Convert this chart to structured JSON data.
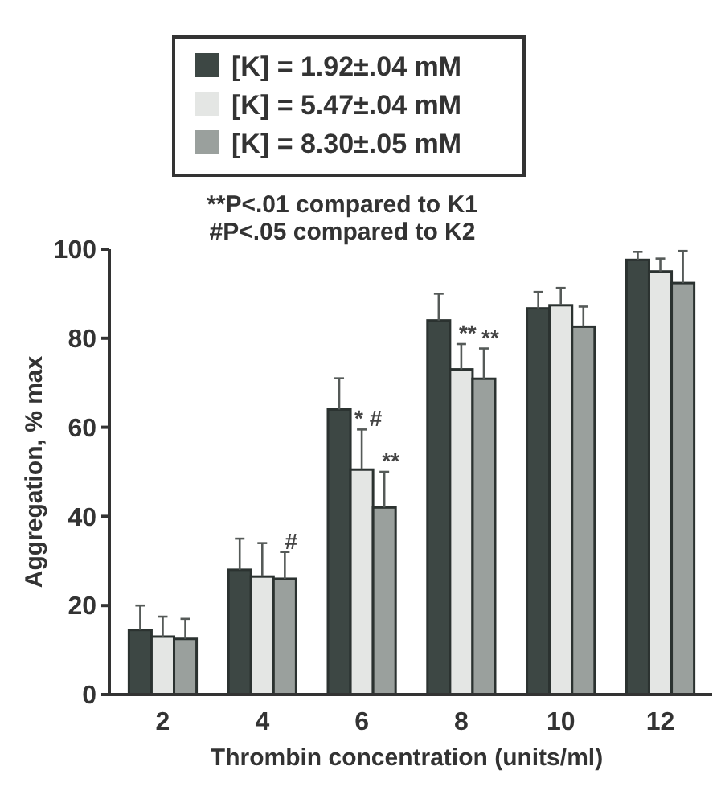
{
  "chart_data": {
    "type": "bar",
    "xlabel": "Thrombin concentration (units/ml)",
    "ylabel": "Aggregation, % max",
    "categories": [
      "2",
      "4",
      "6",
      "8",
      "10",
      "12"
    ],
    "series": [
      {
        "name": "[K] = 1.92±.04 mM",
        "color": "#3d4744",
        "values": [
          14.5,
          28,
          64,
          84,
          86.7,
          97.6
        ],
        "errors": [
          [
            14.5,
            20
          ],
          [
            28,
            35
          ],
          [
            64,
            71
          ],
          [
            84,
            90
          ],
          [
            86.7,
            90.4
          ],
          [
            97.6,
            99.4
          ]
        ]
      },
      {
        "name": "[K] = 5.47±.04 mM",
        "color": "#e4e6e4",
        "values": [
          13,
          26.5,
          50.5,
          73,
          87.4,
          95
        ],
        "errors": [
          [
            13,
            17.5
          ],
          [
            26.5,
            34
          ],
          [
            50.5,
            59.5
          ],
          [
            73,
            78.7
          ],
          [
            87.4,
            91.3
          ],
          [
            95,
            97.9
          ]
        ]
      },
      {
        "name": "[K] = 8.30±.05 mM",
        "color": "#9aa09d",
        "values": [
          12.5,
          26,
          42,
          70.9,
          82.6,
          92.4
        ],
        "errors": [
          [
            12.5,
            17
          ],
          [
            26,
            32
          ],
          [
            42,
            50
          ],
          [
            70.9,
            77.7
          ],
          [
            82.6,
            87.1
          ],
          [
            92.4,
            99.6
          ]
        ]
      }
    ],
    "ylim": [
      0,
      100
    ],
    "yticks": [
      0,
      20,
      40,
      60,
      80,
      100
    ],
    "grid": false,
    "legend": "top",
    "annotations": [
      "**P<.01 compared to K1",
      "#P<.05 compared to K2",
      {
        "text": "#",
        "x": "4",
        "y": 32
      },
      {
        "text": "* #",
        "x": "6",
        "y": 59.5
      },
      {
        "text": "**",
        "x": "6",
        "y": 50
      },
      {
        "text": "**",
        "x": "8",
        "y": 78.7
      },
      {
        "text": "**",
        "x": "8",
        "y": 77.7
      }
    ]
  }
}
